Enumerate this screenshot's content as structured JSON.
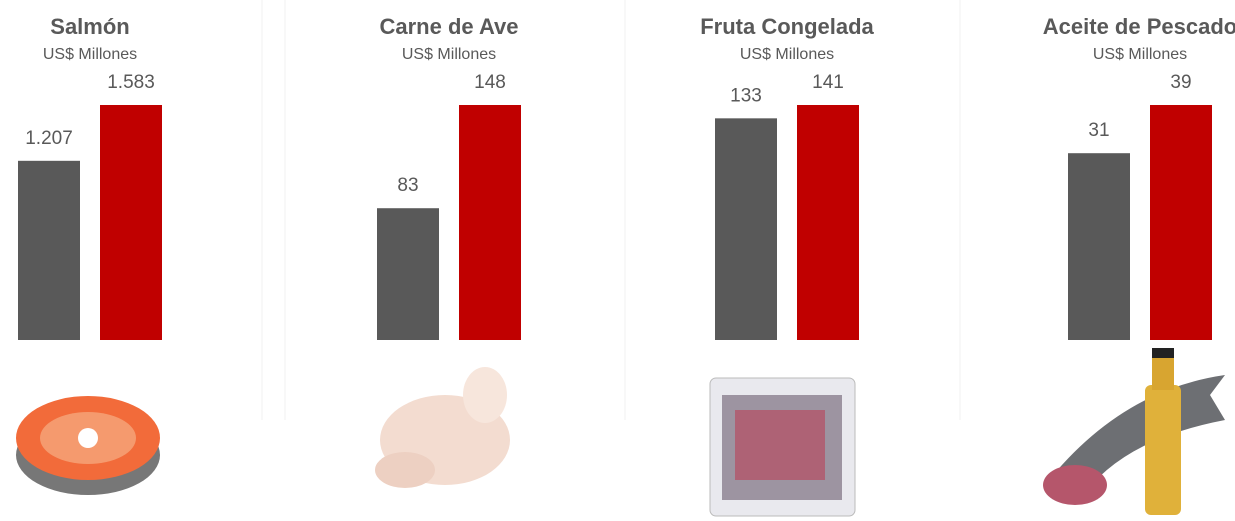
{
  "chart_data": [
    {
      "type": "bar",
      "title": "Salmón",
      "subtitle": "US$ Millones",
      "values": [
        1207,
        1583
      ],
      "value_labels": [
        "1.207",
        "1.583"
      ],
      "colors": [
        "#595959",
        "#c00000"
      ]
    },
    {
      "type": "bar",
      "title": "Carne de Ave",
      "subtitle": "US$ Millones",
      "values": [
        83,
        148
      ],
      "colors": [
        "#595959",
        "#c00000"
      ]
    },
    {
      "type": "bar",
      "title": "Fruta Congelada",
      "subtitle": "US$ Millones",
      "values": [
        133,
        141
      ],
      "colors": [
        "#595959",
        "#c00000"
      ]
    },
    {
      "type": "bar",
      "title": "Aceite de Pescado",
      "subtitle": "US$ Millones",
      "values": [
        31,
        39
      ],
      "colors": [
        "#595959",
        "#c00000"
      ]
    }
  ]
}
